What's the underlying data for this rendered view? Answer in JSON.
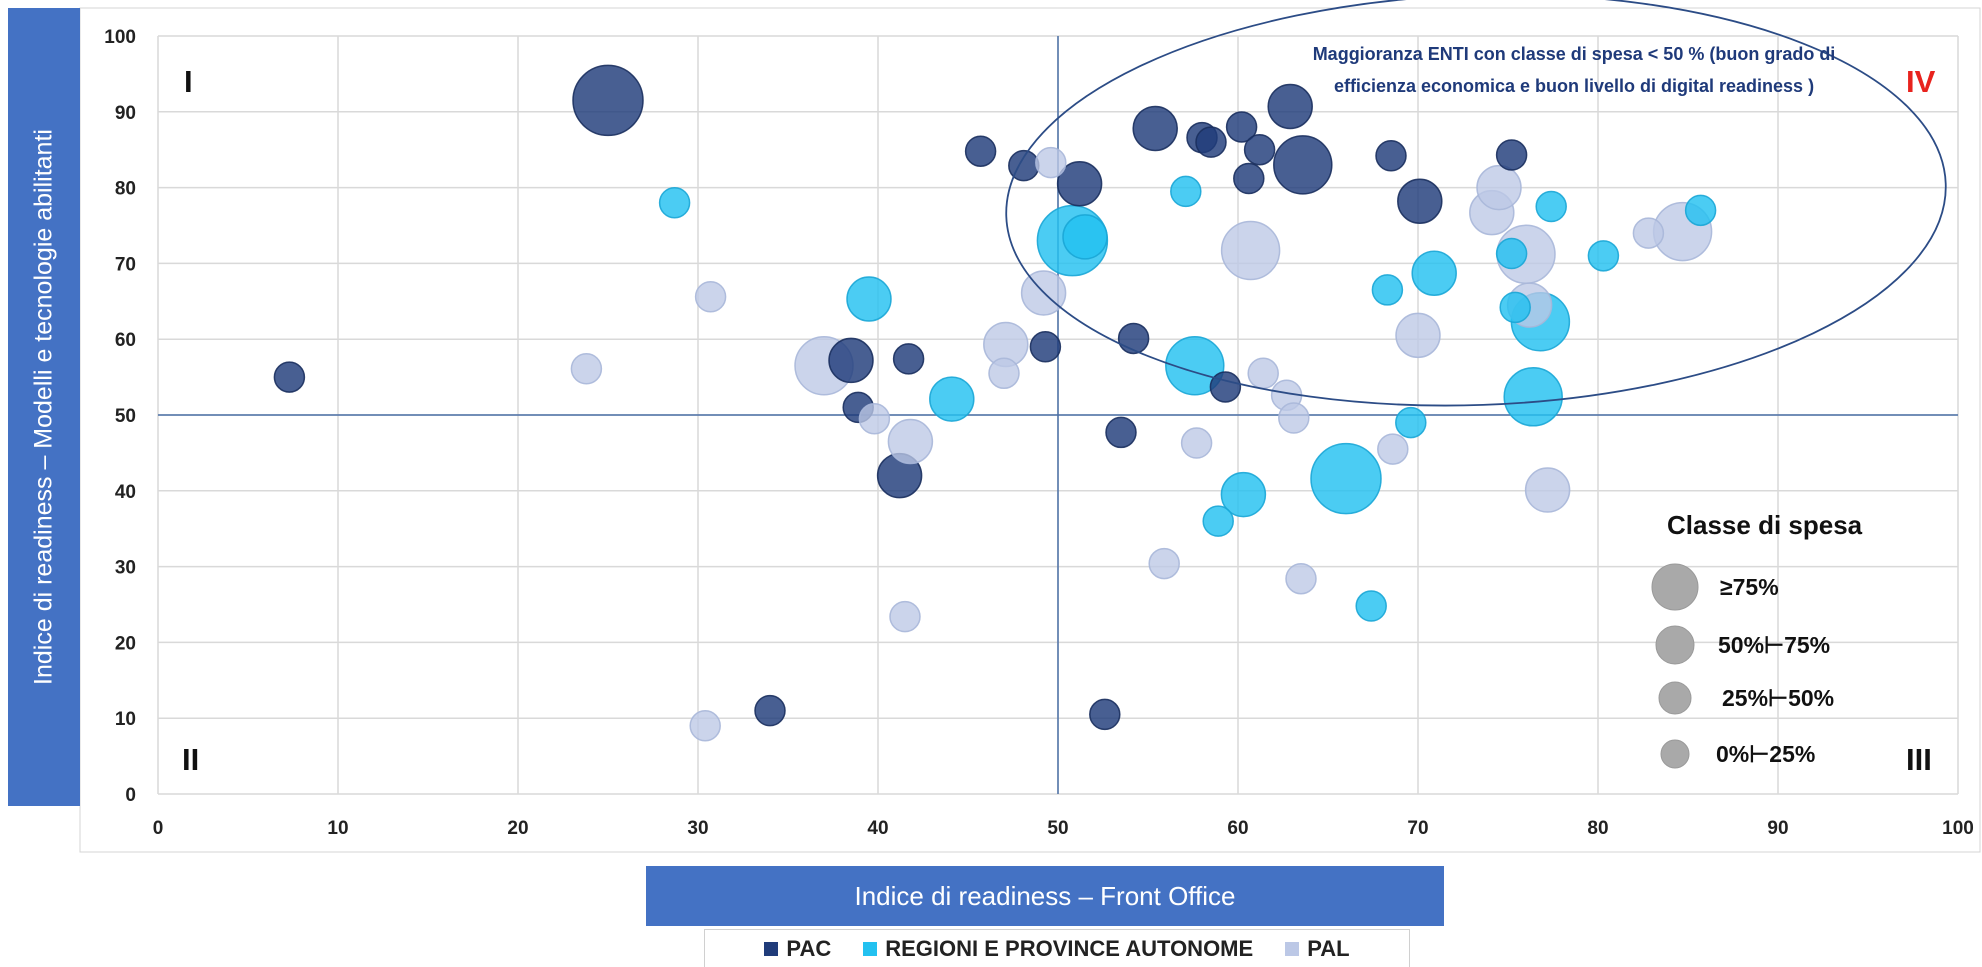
{
  "y_axis_label": "Indice di readiness – Modelli e tecnologie abilitanti",
  "x_axis_label": "Indice di readiness – Front Office",
  "quadrants": {
    "q1": "I",
    "q2": "II",
    "q3": "III",
    "q4": "IV"
  },
  "annotation": {
    "line1": "Maggioranza ENTI con classe di spesa  < 50 % (buon grado di",
    "line2": "efficienza economica e buon livello di digital readiness )"
  },
  "size_legend": {
    "title": "Classe di spesa",
    "items": [
      "≥75%",
      "50%⊢75%",
      "25%⊢50%",
      "0%⊢25%"
    ]
  },
  "colors": {
    "PAC": "#203c7a",
    "REGIONI": "#23c1f0",
    "PAL": "#bcc8e6",
    "axis_box": "#4472c4",
    "quadrant_IV": "#e8231e",
    "reference_lines": "#4a6fa5"
  },
  "chart_data": {
    "type": "scatter",
    "xlim": [
      0,
      100
    ],
    "ylim": [
      0,
      100
    ],
    "x_ticks": [
      0,
      10,
      20,
      30,
      40,
      50,
      60,
      70,
      80,
      90,
      100
    ],
    "y_ticks": [
      0,
      10,
      20,
      30,
      40,
      50,
      60,
      70,
      80,
      90,
      100
    ],
    "xlabel": "Indice di readiness – Front Office",
    "ylabel": "Indice di readiness – Modelli e tecnologie abilitanti",
    "grid": true,
    "reference_lines": {
      "x": 50,
      "y": 50
    },
    "size_classes": [
      "0%⊢25%",
      "25%⊢50%",
      "50%⊢75%",
      "≥75%"
    ],
    "legend_position": "bottom",
    "series": [
      {
        "name": "PAC",
        "points": [
          {
            "x": 25,
            "y": 91.5,
            "size": "≥75%"
          },
          {
            "x": 7.3,
            "y": 55,
            "size": "0%⊢25%"
          },
          {
            "x": 34,
            "y": 11,
            "size": "0%⊢25%"
          },
          {
            "x": 45.7,
            "y": 84.8,
            "size": "0%⊢25%"
          },
          {
            "x": 48.1,
            "y": 82.9,
            "size": "0%⊢25%"
          },
          {
            "x": 51.2,
            "y": 80.5,
            "size": "25%⊢50%"
          },
          {
            "x": 55.4,
            "y": 87.8,
            "size": "25%⊢50%"
          },
          {
            "x": 58,
            "y": 86.6,
            "size": "0%⊢25%"
          },
          {
            "x": 58.5,
            "y": 86,
            "size": "0%⊢25%"
          },
          {
            "x": 60.2,
            "y": 88,
            "size": "0%⊢25%"
          },
          {
            "x": 61.2,
            "y": 85,
            "size": "0%⊢25%"
          },
          {
            "x": 60.6,
            "y": 81.2,
            "size": "0%⊢25%"
          },
          {
            "x": 62.9,
            "y": 90.7,
            "size": "25%⊢50%"
          },
          {
            "x": 63.6,
            "y": 83,
            "size": "50%⊢75%"
          },
          {
            "x": 68.5,
            "y": 84.2,
            "size": "0%⊢25%"
          },
          {
            "x": 70.1,
            "y": 78.2,
            "size": "25%⊢50%"
          },
          {
            "x": 75.2,
            "y": 84.3,
            "size": "0%⊢25%"
          },
          {
            "x": 38.5,
            "y": 57.2,
            "size": "25%⊢50%"
          },
          {
            "x": 41.7,
            "y": 57.4,
            "size": "0%⊢25%"
          },
          {
            "x": 38.9,
            "y": 51,
            "size": "0%⊢25%"
          },
          {
            "x": 41.2,
            "y": 42,
            "size": "25%⊢50%"
          },
          {
            "x": 49.3,
            "y": 59,
            "size": "0%⊢25%"
          },
          {
            "x": 54.2,
            "y": 60.1,
            "size": "0%⊢25%"
          },
          {
            "x": 59.3,
            "y": 53.7,
            "size": "0%⊢25%"
          },
          {
            "x": 53.5,
            "y": 47.7,
            "size": "0%⊢25%"
          },
          {
            "x": 52.6,
            "y": 10.5,
            "size": "0%⊢25%"
          }
        ]
      },
      {
        "name": "REGIONI E PROVINCE AUTONOME",
        "points": [
          {
            "x": 28.7,
            "y": 78,
            "size": "0%⊢25%"
          },
          {
            "x": 39.5,
            "y": 65.3,
            "size": "25%⊢50%"
          },
          {
            "x": 44.1,
            "y": 52.1,
            "size": "25%⊢50%"
          },
          {
            "x": 50.8,
            "y": 73,
            "size": "≥75%"
          },
          {
            "x": 51.5,
            "y": 73.5,
            "size": "25%⊢50%"
          },
          {
            "x": 57.1,
            "y": 79.5,
            "size": "0%⊢25%"
          },
          {
            "x": 57.6,
            "y": 56.5,
            "size": "50%⊢75%"
          },
          {
            "x": 60.3,
            "y": 39.5,
            "size": "25%⊢50%"
          },
          {
            "x": 58.9,
            "y": 36,
            "size": "0%⊢25%"
          },
          {
            "x": 66,
            "y": 41.6,
            "size": "≥75%"
          },
          {
            "x": 67.4,
            "y": 24.8,
            "size": "0%⊢25%"
          },
          {
            "x": 68.3,
            "y": 66.5,
            "size": "0%⊢25%"
          },
          {
            "x": 69.6,
            "y": 49,
            "size": "0%⊢25%"
          },
          {
            "x": 70.9,
            "y": 68.7,
            "size": "25%⊢50%"
          },
          {
            "x": 75.2,
            "y": 71.3,
            "size": "0%⊢25%"
          },
          {
            "x": 75.4,
            "y": 64.2,
            "size": "0%⊢25%"
          },
          {
            "x": 76.8,
            "y": 62.3,
            "size": "50%⊢75%"
          },
          {
            "x": 76.4,
            "y": 52.4,
            "size": "50%⊢75%"
          },
          {
            "x": 77.4,
            "y": 77.5,
            "size": "0%⊢25%"
          },
          {
            "x": 80.3,
            "y": 71,
            "size": "0%⊢25%"
          },
          {
            "x": 85.7,
            "y": 77,
            "size": "0%⊢25%"
          }
        ]
      },
      {
        "name": "PAL",
        "points": [
          {
            "x": 23.8,
            "y": 56.1,
            "size": "0%⊢25%"
          },
          {
            "x": 30.7,
            "y": 65.6,
            "size": "0%⊢25%"
          },
          {
            "x": 30.4,
            "y": 9,
            "size": "0%⊢25%"
          },
          {
            "x": 37,
            "y": 56.5,
            "size": "50%⊢75%"
          },
          {
            "x": 39.8,
            "y": 49.5,
            "size": "0%⊢25%"
          },
          {
            "x": 41.8,
            "y": 46.5,
            "size": "25%⊢50%"
          },
          {
            "x": 41.5,
            "y": 23.4,
            "size": "0%⊢25%"
          },
          {
            "x": 47.1,
            "y": 59.3,
            "size": "25%⊢50%"
          },
          {
            "x": 47,
            "y": 55.5,
            "size": "0%⊢25%"
          },
          {
            "x": 49.2,
            "y": 66.1,
            "size": "25%⊢50%"
          },
          {
            "x": 49.6,
            "y": 83.3,
            "size": "0%⊢25%"
          },
          {
            "x": 55.9,
            "y": 30.4,
            "size": "0%⊢25%"
          },
          {
            "x": 57.7,
            "y": 46.3,
            "size": "0%⊢25%"
          },
          {
            "x": 60.7,
            "y": 71.7,
            "size": "50%⊢75%"
          },
          {
            "x": 61.4,
            "y": 55.5,
            "size": "0%⊢25%"
          },
          {
            "x": 62.7,
            "y": 52.6,
            "size": "0%⊢25%"
          },
          {
            "x": 63.1,
            "y": 49.6,
            "size": "0%⊢25%"
          },
          {
            "x": 63.5,
            "y": 28.4,
            "size": "0%⊢25%"
          },
          {
            "x": 68.6,
            "y": 45.5,
            "size": "0%⊢25%"
          },
          {
            "x": 70,
            "y": 60.5,
            "size": "25%⊢50%"
          },
          {
            "x": 74.1,
            "y": 76.7,
            "size": "25%⊢50%"
          },
          {
            "x": 74.5,
            "y": 80,
            "size": "25%⊢50%"
          },
          {
            "x": 76,
            "y": 71.2,
            "size": "50%⊢75%"
          },
          {
            "x": 76.2,
            "y": 64.5,
            "size": "25%⊢50%"
          },
          {
            "x": 77.2,
            "y": 40.1,
            "size": "25%⊢50%"
          },
          {
            "x": 82.8,
            "y": 74,
            "size": "0%⊢25%"
          },
          {
            "x": 84.7,
            "y": 74.2,
            "size": "50%⊢75%"
          }
        ]
      }
    ]
  }
}
